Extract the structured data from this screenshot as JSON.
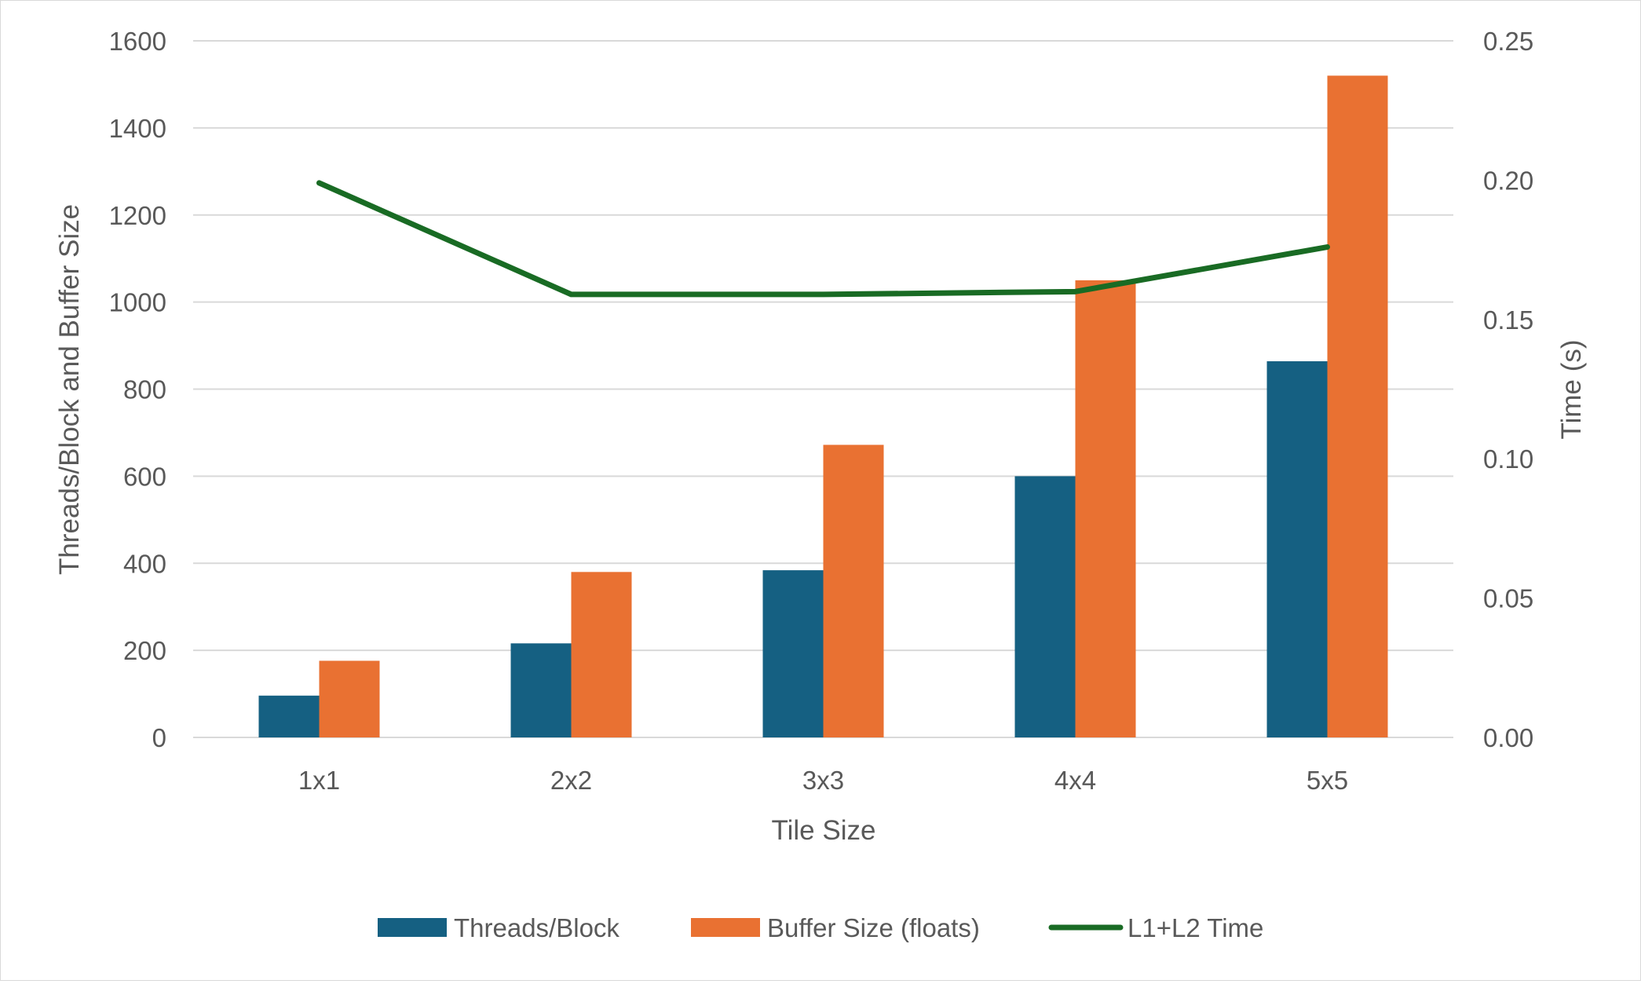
{
  "chart_data": {
    "type": "bar",
    "title": "",
    "categories": [
      "1x1",
      "2x2",
      "3x3",
      "4x4",
      "5x5"
    ],
    "xlabel": "Tile Size",
    "ylabel": "Threads/Block and Buffer Size",
    "y2label": "Time (s)",
    "ylim": [
      0,
      1600
    ],
    "yticks": [
      "0",
      "200",
      "400",
      "600",
      "800",
      "1000",
      "1200",
      "1400",
      "1600"
    ],
    "y2lim": [
      0,
      0.25
    ],
    "y2ticks": [
      "0.00",
      "0.05",
      "0.10",
      "0.15",
      "0.20",
      "0.25"
    ],
    "grid": true,
    "legend_position": "bottom",
    "series": [
      {
        "name": "Threads/Block",
        "type": "bar",
        "axis": "left",
        "color": "#156082",
        "values": [
          96,
          216,
          384,
          600,
          864
        ]
      },
      {
        "name": "Buffer Size (floats)",
        "type": "bar",
        "axis": "left",
        "color": "#E97132",
        "values": [
          176,
          380,
          672,
          1050,
          1520
        ]
      },
      {
        "name": "L1+L2 Time",
        "type": "line",
        "axis": "right",
        "color": "#196B24",
        "values": [
          0.199,
          0.159,
          0.159,
          0.16,
          0.176
        ]
      }
    ]
  }
}
